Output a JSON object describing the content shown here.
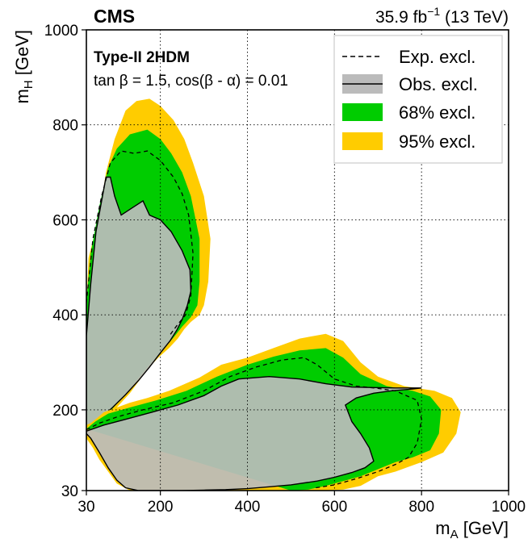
{
  "chart_data": {
    "type": "area",
    "experiment": "CMS",
    "luminosity_label": "35.9 fb",
    "luminosity_exponent": "−1",
    "energy_label": "(13 TeV)",
    "model_label": "Type-II 2HDM",
    "params_label": "tan β = 1.5, cos(β - α) = 0.01",
    "xlabel": "m",
    "xlabel_sub": "A",
    "xlabel_unit": "[GeV]",
    "ylabel": "m",
    "ylabel_sub": "H",
    "ylabel_unit": "[GeV]",
    "xlim": [
      30,
      1000
    ],
    "ylim": [
      30,
      1000
    ],
    "xticks": [
      30,
      200,
      400,
      600,
      800,
      1000
    ],
    "yticks": [
      30,
      200,
      400,
      600,
      800,
      1000
    ],
    "grid": true,
    "legend_position": "top-right",
    "legend": [
      {
        "label": "Exp. excl.",
        "style": "dashed"
      },
      {
        "label": "Obs. excl.",
        "style": "filled-outline"
      },
      {
        "label": "68% excl.",
        "style": "filled"
      },
      {
        "label": "95% excl.",
        "style": "filled"
      }
    ],
    "colors": {
      "band68": "#00cc00",
      "band95": "#ffcc00",
      "observed": "#bbbbbb",
      "observed_overlap": "#a89a4a"
    },
    "regions": {
      "upper": {
        "band95": [
          [
            30,
            410
          ],
          [
            35,
            520
          ],
          [
            60,
            610
          ],
          [
            75,
            700
          ],
          [
            95,
            770
          ],
          [
            120,
            830
          ],
          [
            145,
            850
          ],
          [
            175,
            855
          ],
          [
            200,
            840
          ],
          [
            230,
            810
          ],
          [
            255,
            770
          ],
          [
            275,
            720
          ],
          [
            300,
            650
          ],
          [
            315,
            560
          ],
          [
            310,
            470
          ],
          [
            300,
            420
          ],
          [
            290,
            400
          ],
          [
            270,
            385
          ],
          [
            255,
            370
          ],
          [
            240,
            350
          ],
          [
            220,
            330
          ],
          [
            195,
            310
          ],
          [
            170,
            285
          ],
          [
            150,
            260
          ],
          [
            130,
            235
          ],
          [
            105,
            210
          ],
          [
            80,
            185
          ],
          [
            60,
            165
          ],
          [
            40,
            155
          ],
          [
            30,
            150
          ]
        ],
        "band68": [
          [
            30,
            430
          ],
          [
            40,
            530
          ],
          [
            60,
            630
          ],
          [
            80,
            710
          ],
          [
            100,
            750
          ],
          [
            130,
            780
          ],
          [
            170,
            790
          ],
          [
            200,
            770
          ],
          [
            225,
            740
          ],
          [
            250,
            700
          ],
          [
            270,
            650
          ],
          [
            290,
            560
          ],
          [
            290,
            470
          ],
          [
            285,
            420
          ],
          [
            270,
            395
          ],
          [
            250,
            375
          ],
          [
            230,
            352
          ],
          [
            205,
            325
          ],
          [
            180,
            300
          ],
          [
            155,
            272
          ],
          [
            130,
            245
          ],
          [
            105,
            218
          ],
          [
            80,
            192
          ],
          [
            55,
            170
          ],
          [
            30,
            160
          ]
        ],
        "expected": [
          [
            30,
            425
          ],
          [
            45,
            560
          ],
          [
            65,
            650
          ],
          [
            85,
            720
          ],
          [
            110,
            745
          ],
          [
            140,
            740
          ],
          [
            170,
            745
          ],
          [
            200,
            725
          ],
          [
            230,
            690
          ],
          [
            250,
            655
          ],
          [
            265,
            610
          ],
          [
            275,
            530
          ],
          [
            270,
            440
          ],
          [
            258,
            400
          ],
          [
            240,
            380
          ],
          [
            220,
            355
          ]
        ],
        "observed": [
          [
            30,
            355
          ],
          [
            40,
            465
          ],
          [
            52,
            575
          ],
          [
            65,
            640
          ],
          [
            75,
            690
          ],
          [
            85,
            690
          ],
          [
            95,
            650
          ],
          [
            110,
            610
          ],
          [
            135,
            625
          ],
          [
            160,
            640
          ],
          [
            175,
            610
          ],
          [
            200,
            600
          ],
          [
            225,
            575
          ],
          [
            250,
            535
          ],
          [
            268,
            495
          ],
          [
            270,
            450
          ],
          [
            262,
            420
          ],
          [
            250,
            390
          ],
          [
            238,
            368
          ],
          [
            222,
            345
          ],
          [
            200,
            320
          ],
          [
            175,
            290
          ],
          [
            150,
            262
          ],
          [
            120,
            232
          ],
          [
            90,
            205
          ],
          [
            60,
            180
          ],
          [
            40,
            168
          ],
          [
            30,
            163
          ]
        ]
      },
      "lower": {
        "band95": [
          [
            30,
            168
          ],
          [
            40,
            172
          ],
          [
            55,
            183
          ],
          [
            70,
            195
          ],
          [
            100,
            205
          ],
          [
            130,
            215
          ],
          [
            170,
            225
          ],
          [
            220,
            240
          ],
          [
            290,
            268
          ],
          [
            340,
            295
          ],
          [
            400,
            310
          ],
          [
            460,
            330
          ],
          [
            520,
            350
          ],
          [
            580,
            360
          ],
          [
            620,
            345
          ],
          [
            660,
            300
          ],
          [
            700,
            270
          ],
          [
            760,
            250
          ],
          [
            830,
            240
          ],
          [
            870,
            225
          ],
          [
            890,
            195
          ],
          [
            880,
            150
          ],
          [
            850,
            110
          ],
          [
            800,
            90
          ],
          [
            740,
            70
          ],
          [
            700,
            60
          ],
          [
            660,
            40
          ],
          [
            620,
            32
          ],
          [
            560,
            30
          ],
          [
            520,
            30
          ],
          [
            470,
            30
          ],
          [
            420,
            30
          ],
          [
            380,
            30
          ],
          [
            350,
            30
          ],
          [
            300,
            30
          ],
          [
            260,
            30
          ],
          [
            220,
            30
          ],
          [
            170,
            30
          ],
          [
            130,
            30
          ],
          [
            100,
            45
          ],
          [
            80,
            70
          ],
          [
            60,
            95
          ],
          [
            45,
            120
          ],
          [
            30,
            140
          ]
        ],
        "band68": [
          [
            30,
            160
          ],
          [
            50,
            175
          ],
          [
            80,
            192
          ],
          [
            130,
            205
          ],
          [
            190,
            220
          ],
          [
            260,
            240
          ],
          [
            330,
            270
          ],
          [
            400,
            295
          ],
          [
            460,
            312
          ],
          [
            520,
            325
          ],
          [
            580,
            330
          ],
          [
            620,
            310
          ],
          [
            660,
            275
          ],
          [
            720,
            250
          ],
          [
            780,
            240
          ],
          [
            820,
            228
          ],
          [
            845,
            200
          ],
          [
            840,
            150
          ],
          [
            820,
            115
          ],
          [
            780,
            100
          ],
          [
            740,
            90
          ],
          [
            700,
            75
          ],
          [
            660,
            60
          ],
          [
            620,
            50
          ],
          [
            580,
            40
          ],
          [
            540,
            32
          ],
          [
            500,
            30
          ]
        ],
        "expected": [
          [
            30,
            158
          ],
          [
            60,
            172
          ],
          [
            100,
            185
          ],
          [
            160,
            200
          ],
          [
            230,
            215
          ],
          [
            300,
            240
          ],
          [
            360,
            270
          ],
          [
            420,
            290
          ],
          [
            480,
            305
          ],
          [
            530,
            310
          ],
          [
            560,
            295
          ],
          [
            600,
            265
          ],
          [
            650,
            250
          ],
          [
            700,
            245
          ],
          [
            740,
            240
          ],
          [
            790,
            220
          ],
          [
            800,
            180
          ],
          [
            790,
            130
          ],
          [
            770,
            100
          ],
          [
            740,
            85
          ],
          [
            700,
            70
          ],
          [
            650,
            55
          ],
          [
            600,
            42
          ],
          [
            550,
            35
          ]
        ],
        "observed": [
          [
            30,
            155
          ],
          [
            70,
            168
          ],
          [
            120,
            180
          ],
          [
            180,
            195
          ],
          [
            240,
            210
          ],
          [
            300,
            230
          ],
          [
            340,
            250
          ],
          [
            380,
            265
          ],
          [
            450,
            270
          ],
          [
            520,
            265
          ],
          [
            580,
            255
          ],
          [
            640,
            248
          ],
          [
            690,
            247
          ],
          [
            740,
            246
          ],
          [
            800,
            246
          ],
          [
            770,
            243
          ],
          [
            730,
            240
          ],
          [
            690,
            235
          ],
          [
            650,
            225
          ],
          [
            625,
            210
          ],
          [
            640,
            175
          ],
          [
            660,
            150
          ],
          [
            680,
            120
          ],
          [
            690,
            92
          ],
          [
            670,
            78
          ],
          [
            640,
            68
          ],
          [
            600,
            58
          ],
          [
            560,
            50
          ],
          [
            500,
            42
          ],
          [
            450,
            38
          ],
          [
            400,
            34
          ],
          [
            350,
            32
          ],
          [
            300,
            31
          ],
          [
            250,
            30
          ],
          [
            200,
            30
          ],
          [
            150,
            30
          ],
          [
            120,
            36
          ],
          [
            100,
            52
          ],
          [
            80,
            78
          ],
          [
            60,
            110
          ],
          [
            40,
            140
          ],
          [
            30,
            150
          ]
        ]
      }
    }
  }
}
